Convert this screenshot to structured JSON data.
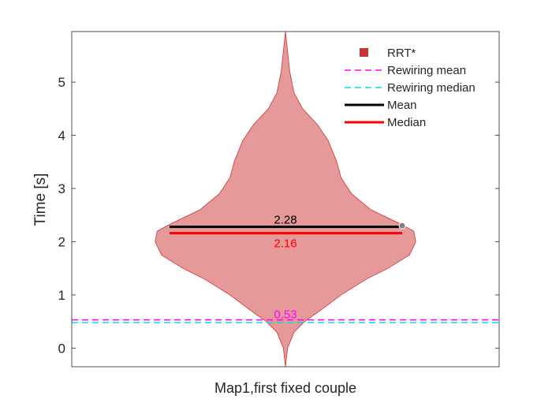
{
  "chart_data": {
    "type": "violin",
    "title": "",
    "xlabel": "Map1,first fixed couple",
    "ylabel": "Time [s]",
    "ylim": [
      -0.35,
      5.95
    ],
    "yticks": [
      "0",
      "1",
      "2",
      "3",
      "4",
      "5"
    ],
    "grid": false,
    "legend_position": "top-right",
    "series": [
      {
        "name": "RRT*",
        "color": "#cc3333",
        "fill_alpha": 0.5,
        "density_profile": [
          {
            "y": -0.35,
            "w": 0.0
          },
          {
            "y": 0.0,
            "w": 0.01
          },
          {
            "y": 0.3,
            "w": 0.04
          },
          {
            "y": 0.5,
            "w": 0.09
          },
          {
            "y": 0.7,
            "w": 0.16
          },
          {
            "y": 1.0,
            "w": 0.26
          },
          {
            "y": 1.3,
            "w": 0.38
          },
          {
            "y": 1.5,
            "w": 0.48
          },
          {
            "y": 1.75,
            "w": 0.58
          },
          {
            "y": 2.0,
            "w": 0.61
          },
          {
            "y": 2.2,
            "w": 0.6
          },
          {
            "y": 2.35,
            "w": 0.53
          },
          {
            "y": 2.6,
            "w": 0.4
          },
          {
            "y": 2.9,
            "w": 0.31
          },
          {
            "y": 3.2,
            "w": 0.26
          },
          {
            "y": 3.5,
            "w": 0.24
          },
          {
            "y": 3.9,
            "w": 0.2
          },
          {
            "y": 4.2,
            "w": 0.15
          },
          {
            "y": 4.5,
            "w": 0.08
          },
          {
            "y": 4.8,
            "w": 0.04
          },
          {
            "y": 5.2,
            "w": 0.02
          },
          {
            "y": 5.95,
            "w": 0.0
          }
        ],
        "mean": 2.28,
        "median": 2.16,
        "outlier_point": 2.3
      }
    ],
    "reference_lines": [
      {
        "name": "Rewiring mean",
        "value": 0.53,
        "color": "#ff00ff",
        "style": "dashed"
      },
      {
        "name": "Rewiring median",
        "value": 0.48,
        "color": "#00e0e0",
        "style": "dashed"
      }
    ],
    "stat_lines": [
      {
        "name": "Mean",
        "value": 2.28,
        "color": "#000000"
      },
      {
        "name": "Median",
        "value": 2.16,
        "color": "#ff0000"
      }
    ],
    "annotations": [
      {
        "text": "2.28",
        "y": 2.28,
        "color": "#000000"
      },
      {
        "text": "2.16",
        "y": 2.16,
        "color": "#ff0000"
      },
      {
        "text": "0.53",
        "y": 0.53,
        "color": "#ff00ff"
      }
    ],
    "legend": [
      {
        "label": "RRT*",
        "kind": "marker",
        "color": "#cc3333"
      },
      {
        "label": "Rewiring mean",
        "kind": "dashed",
        "color": "#ff00ff"
      },
      {
        "label": "Rewiring median",
        "kind": "dashed",
        "color": "#00e0e0"
      },
      {
        "label": "Mean",
        "kind": "solid",
        "color": "#000000"
      },
      {
        "label": "Median",
        "kind": "solid",
        "color": "#ff0000"
      }
    ]
  }
}
